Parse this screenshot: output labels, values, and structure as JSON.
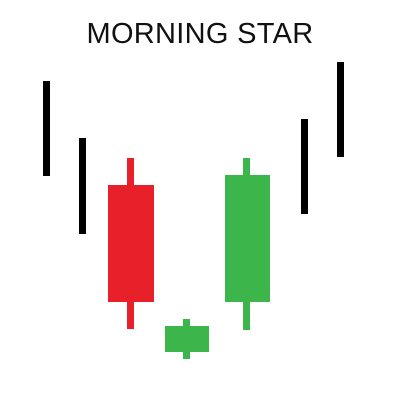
{
  "title": "MORNING STAR",
  "colors": {
    "background": "#ffffff",
    "title": "#111111",
    "trend_line": "#000000",
    "bearish": "#e8202a",
    "bullish": "#3cb54a"
  },
  "candles": [
    {
      "name": "trend-line-1",
      "kind": "trend",
      "color_key": "trend_line"
    },
    {
      "name": "trend-line-2",
      "kind": "trend",
      "color_key": "trend_line"
    },
    {
      "name": "bearish-candle",
      "kind": "candle",
      "color_key": "bearish"
    },
    {
      "name": "star-candle",
      "kind": "candle",
      "color_key": "bullish"
    },
    {
      "name": "bullish-candle",
      "kind": "candle",
      "color_key": "bullish"
    },
    {
      "name": "trend-line-3",
      "kind": "trend",
      "color_key": "trend_line"
    },
    {
      "name": "trend-line-4",
      "kind": "trend",
      "color_key": "trend_line"
    }
  ]
}
